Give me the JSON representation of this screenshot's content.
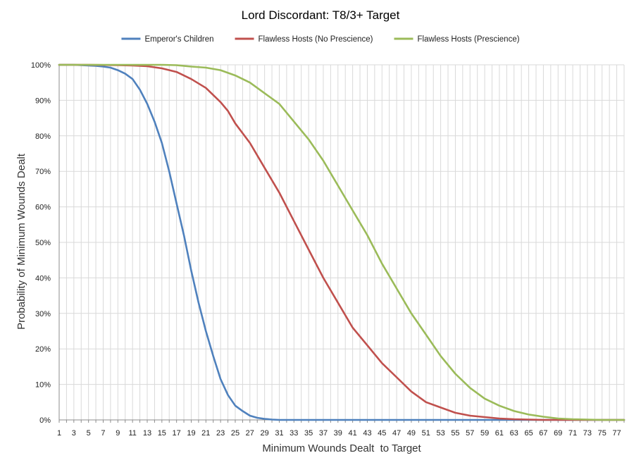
{
  "chart_data": {
    "type": "line",
    "title": "Lord Discordant: T8/3+ Target",
    "xlabel": "Minimum Wounds Dealt  to Target",
    "ylabel": "Probability of Minimum Wounds Dealt",
    "xlim": [
      1,
      78
    ],
    "ylim": [
      0,
      100
    ],
    "x_tick_labels": [
      "1",
      "3",
      "5",
      "7",
      "9",
      "11",
      "13",
      "15",
      "17",
      "19",
      "21",
      "23",
      "25",
      "27",
      "29",
      "31",
      "33",
      "35",
      "37",
      "39",
      "41",
      "43",
      "45",
      "47",
      "49",
      "51",
      "53",
      "55",
      "57",
      "59",
      "61",
      "63",
      "65",
      "67",
      "69",
      "71",
      "73",
      "75",
      "77"
    ],
    "y_tick_labels": [
      "0%",
      "10%",
      "20%",
      "30%",
      "40%",
      "50%",
      "60%",
      "70%",
      "80%",
      "90%",
      "100%"
    ],
    "y_ticks": [
      0,
      10,
      20,
      30,
      40,
      50,
      60,
      70,
      80,
      90,
      100
    ],
    "grid": true,
    "legend_position": "top",
    "series": [
      {
        "name": "Emperor's Children",
        "color": "#4f81bd",
        "x": [
          1,
          2,
          3,
          4,
          5,
          6,
          7,
          8,
          9,
          10,
          11,
          12,
          13,
          14,
          15,
          16,
          17,
          18,
          19,
          20,
          21,
          22,
          23,
          24,
          25,
          26,
          27,
          28,
          29,
          30,
          31,
          32,
          35,
          40,
          45,
          50,
          55,
          60,
          65,
          70,
          75,
          78
        ],
        "values": [
          100,
          100,
          100,
          99.9,
          99.8,
          99.7,
          99.5,
          99.2,
          98.5,
          97.5,
          96,
          93,
          89,
          84,
          78,
          70,
          61,
          52,
          42,
          33,
          25,
          18,
          11.5,
          7,
          4,
          2.5,
          1.2,
          0.6,
          0.3,
          0.1,
          0,
          0,
          0,
          0,
          0,
          0,
          0,
          0,
          0,
          0,
          0,
          0
        ]
      },
      {
        "name": "Flawless Hosts (No Prescience)",
        "color": "#c0504d",
        "x": [
          1,
          5,
          9,
          11,
          13,
          15,
          17,
          19,
          21,
          23,
          24,
          25,
          27,
          29,
          31,
          33,
          35,
          37,
          39,
          41,
          43,
          44,
          45,
          47,
          49,
          51,
          53,
          55,
          57,
          59,
          61,
          63,
          65,
          67,
          70,
          75,
          78
        ],
        "values": [
          100,
          100,
          99.9,
          99.8,
          99.6,
          99,
          98,
          96,
          93.5,
          89.5,
          87,
          83.5,
          78,
          71,
          64,
          56,
          48,
          40,
          33,
          26,
          21,
          18.5,
          16,
          12,
          8,
          5,
          3.5,
          2,
          1.2,
          0.8,
          0.4,
          0.2,
          0.1,
          0,
          0,
          0,
          0
        ]
      },
      {
        "name": "Flawless Hosts (Prescience)",
        "color": "#9bbb59",
        "x": [
          1,
          5,
          9,
          13,
          15,
          17,
          19,
          21,
          23,
          25,
          27,
          29,
          31,
          33,
          35,
          37,
          39,
          41,
          43,
          45,
          47,
          49,
          51,
          53,
          55,
          57,
          59,
          61,
          63,
          65,
          67,
          69,
          71,
          73,
          75,
          78
        ],
        "values": [
          100,
          100,
          100,
          100,
          100,
          99.9,
          99.5,
          99.2,
          98.5,
          97,
          95,
          92,
          89,
          84,
          79,
          73,
          66,
          59,
          52,
          44,
          37,
          30,
          24,
          18,
          13,
          9,
          6,
          4,
          2.5,
          1.5,
          0.9,
          0.4,
          0.2,
          0.1,
          0,
          0
        ]
      }
    ]
  }
}
